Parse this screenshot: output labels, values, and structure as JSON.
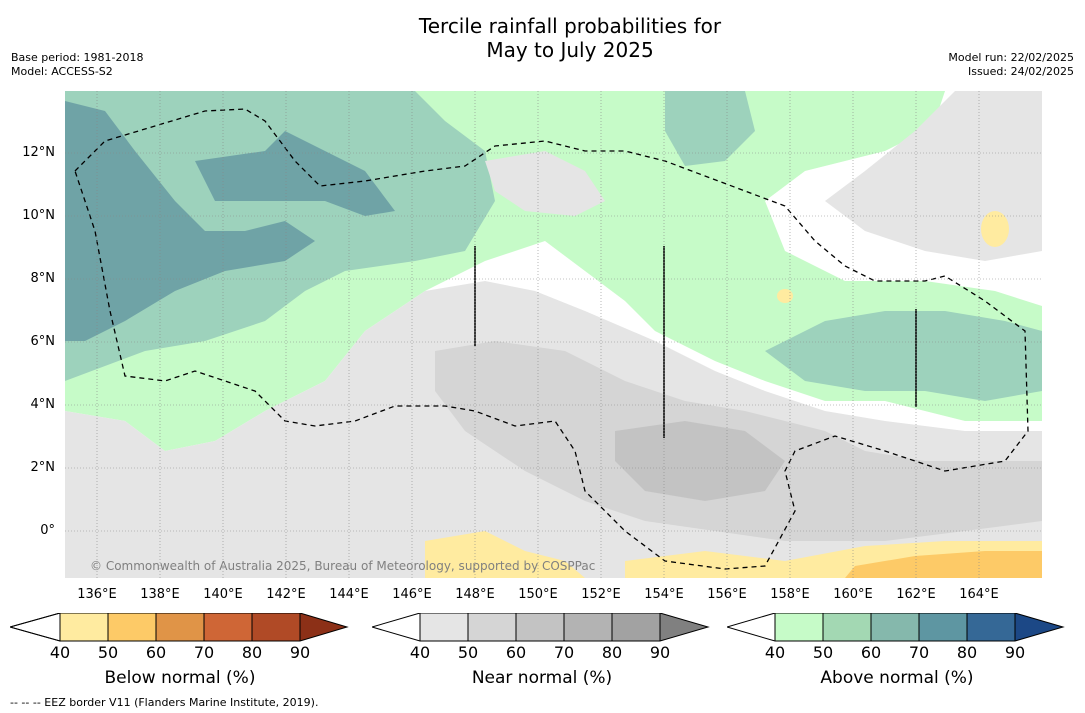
{
  "header": {
    "title_line1": "Tercile rainfall probabilities for",
    "title_line2": "May to July 2025",
    "base_period": "Base period: 1981-2018",
    "model": "Model: ACCESS-S2",
    "model_run": "Model run: 22/02/2025",
    "issued": "Issued: 24/02/2025"
  },
  "axes": {
    "y_ticks": [
      "12°N",
      "10°N",
      "8°N",
      "6°N",
      "4°N",
      "2°N",
      "0°"
    ],
    "x_ticks": [
      "136°E",
      "138°E",
      "140°E",
      "142°E",
      "144°E",
      "146°E",
      "148°E",
      "150°E",
      "152°E",
      "154°E",
      "156°E",
      "158°E",
      "160°E",
      "162°E",
      "164°E"
    ]
  },
  "map": {
    "copyright": "© Commonwealth of Australia 2025, Bureau of Meteorology, supported by COSPPac"
  },
  "legend": {
    "below": {
      "title": "Below normal (%)",
      "ticks": [
        "40",
        "50",
        "60",
        "70",
        "80",
        "90"
      ],
      "colors": [
        "#ffffff",
        "#ffeba0",
        "#fdca67",
        "#e09447",
        "#cf6636",
        "#b04a26",
        "#8c3017"
      ]
    },
    "near": {
      "title": "Near normal (%)",
      "ticks": [
        "40",
        "50",
        "60",
        "70",
        "80",
        "90"
      ],
      "colors": [
        "#ffffff",
        "#e5e5e5",
        "#d5d5d5",
        "#c3c3c3",
        "#b3b3b3",
        "#a2a2a2",
        "#808080"
      ]
    },
    "above": {
      "title": "Above normal (%)",
      "ticks": [
        "40",
        "50",
        "60",
        "70",
        "80",
        "90"
      ],
      "colors": [
        "#ffffff",
        "#c6fbc8",
        "#a3d8b3",
        "#85b8ac",
        "#5e96a2",
        "#356896",
        "#1c4886"
      ]
    }
  },
  "footnote": "--  --  -- EEZ border V11 (Flanders Marine Institute, 2019)."
}
